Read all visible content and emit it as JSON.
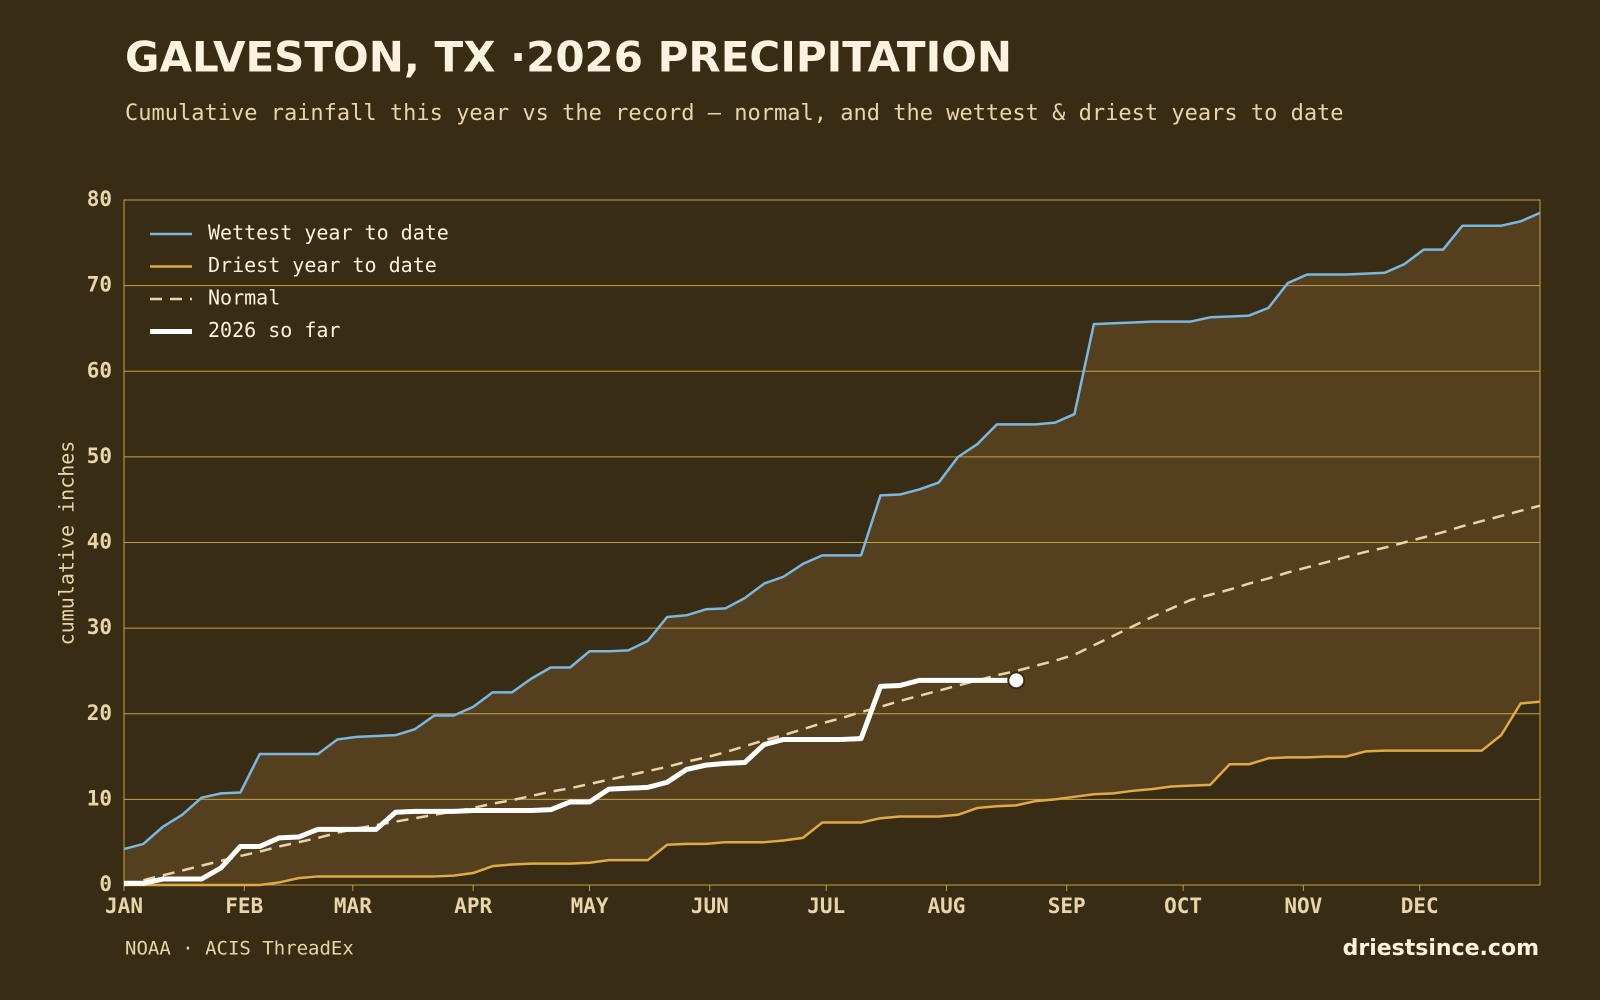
{
  "chart_data": {
    "type": "line",
    "title": "GALVESTON, TX ·2026 PRECIPITATION",
    "subtitle": "Cumulative rainfall this year vs the record — normal, and the wettest & driest years to date",
    "y_label": "cumulative inches",
    "source": "NOAA · ACIS ThreadEx",
    "brand": "driestsince.com",
    "x": [
      0,
      5,
      10,
      15,
      20,
      25,
      30,
      35,
      40,
      45,
      50,
      55,
      60,
      65,
      70,
      75,
      80,
      85,
      90,
      95,
      100,
      105,
      110,
      115,
      120,
      125,
      130,
      135,
      140,
      145,
      150,
      155,
      160,
      165,
      170,
      175,
      180,
      185,
      190,
      195,
      200,
      205,
      210,
      215,
      220,
      225,
      230,
      235,
      240,
      245,
      250,
      255,
      260,
      265,
      270,
      275,
      280,
      285,
      290,
      295,
      300,
      305,
      310,
      315,
      320,
      325,
      330,
      335,
      340,
      345,
      350,
      355,
      360,
      365
    ],
    "xlim": [
      0,
      365
    ],
    "xticks": [
      {
        "value": 0,
        "label": "JAN"
      },
      {
        "value": 31,
        "label": "FEB"
      },
      {
        "value": 59,
        "label": "MAR"
      },
      {
        "value": 90,
        "label": "APR"
      },
      {
        "value": 120,
        "label": "MAY"
      },
      {
        "value": 151,
        "label": "JUN"
      },
      {
        "value": 181,
        "label": "JUL"
      },
      {
        "value": 212,
        "label": "AUG"
      },
      {
        "value": 243,
        "label": "SEP"
      },
      {
        "value": 273,
        "label": "OCT"
      },
      {
        "value": 304,
        "label": "NOV"
      },
      {
        "value": 334,
        "label": "DEC"
      }
    ],
    "ylim": [
      0,
      80
    ],
    "yticks": [
      0,
      10,
      20,
      30,
      40,
      50,
      60,
      70,
      80
    ],
    "grid": true,
    "legend": "upper left",
    "band_color": "#543f1f",
    "series": [
      {
        "name": "Wettest year to date",
        "color": "#7ab8e0",
        "width": 2.5,
        "dashed": false,
        "values": [
          4.2,
          4.8,
          6.8,
          8.2,
          10.2,
          10.7,
          10.8,
          15.3,
          15.3,
          15.3,
          15.3,
          17,
          17.3,
          17.4,
          17.5,
          18.2,
          19.8,
          19.8,
          20.8,
          22.5,
          22.5,
          24.1,
          25.4,
          25.4,
          27.3,
          27.3,
          27.4,
          28.5,
          31.3,
          31.5,
          32.2,
          32.3,
          33.5,
          35.2,
          36,
          37.5,
          38.5,
          38.5,
          38.5,
          45.5,
          45.6,
          46.2,
          47,
          50,
          51.5,
          53.8,
          53.8,
          53.8,
          54,
          55,
          65.5,
          65.6,
          65.7,
          65.8,
          65.8,
          65.8,
          66.3,
          66.4,
          66.5,
          67.4,
          70.3,
          71.3,
          71.3,
          71.3,
          71.4,
          71.5,
          72.5,
          74.2,
          74.2,
          77,
          77,
          77,
          77.5,
          78.5
        ]
      },
      {
        "name": "Driest year to date",
        "color": "#e0aa45",
        "width": 2.5,
        "dashed": false,
        "values": [
          0,
          0,
          0,
          0,
          0,
          0,
          0,
          0,
          0.3,
          0.8,
          1,
          1,
          1,
          1,
          1,
          1,
          1,
          1.1,
          1.4,
          2.2,
          2.4,
          2.5,
          2.5,
          2.5,
          2.6,
          2.9,
          2.9,
          2.9,
          4.7,
          4.8,
          4.8,
          5,
          5,
          5,
          5.2,
          5.5,
          7.3,
          7.3,
          7.3,
          7.8,
          8,
          8,
          8,
          8.2,
          9,
          9.2,
          9.3,
          9.8,
          10,
          10.3,
          10.6,
          10.7,
          11,
          11.2,
          11.5,
          11.6,
          11.7,
          14.1,
          14.1,
          14.8,
          14.9,
          14.9,
          15,
          15,
          15.6,
          15.7,
          15.7,
          15.7,
          15.7,
          15.7,
          15.7,
          17.5,
          21.2,
          21.4
        ]
      },
      {
        "name": "Normal",
        "color": "#e8d5a8",
        "width": 2.5,
        "dashed": true,
        "values": [
          0,
          0.56,
          1.13,
          1.69,
          2.26,
          2.82,
          3.39,
          3.9,
          4.5,
          5,
          5.5,
          6.1,
          6.6,
          7,
          7.4,
          7.8,
          8.2,
          8.6,
          9,
          9.5,
          9.9,
          10.4,
          10.9,
          11.3,
          11.8,
          12.3,
          12.8,
          13.3,
          13.8,
          14.4,
          14.9,
          15.5,
          16.2,
          16.9,
          17.5,
          18.2,
          18.9,
          19.5,
          20.2,
          20.8,
          21.5,
          22.1,
          22.7,
          23.3,
          23.9,
          24.5,
          25,
          25.6,
          26.2,
          26.9,
          28,
          29.1,
          30.2,
          31.3,
          32.3,
          33.3,
          33.9,
          34.5,
          35.2,
          35.8,
          36.5,
          37.1,
          37.7,
          38.3,
          38.9,
          39.4,
          40,
          40.6,
          41.2,
          41.9,
          42.5,
          43.1,
          43.7,
          44.3
        ]
      },
      {
        "name": "2026 so far",
        "color": "#ffffff",
        "width": 5,
        "dashed": false,
        "end_marker": true,
        "values": [
          0.2,
          0.2,
          0.7,
          0.7,
          0.7,
          2,
          4.5,
          4.5,
          5.5,
          5.6,
          6.5,
          6.5,
          6.5,
          6.5,
          8.5,
          8.6,
          8.6,
          8.6,
          8.7,
          8.7,
          8.7,
          8.7,
          8.8,
          9.7,
          9.7,
          11.2,
          11.3,
          11.4,
          12,
          13.5,
          14,
          14.2,
          14.3,
          16.4,
          17,
          17,
          17,
          17,
          17.1,
          23.2,
          23.3,
          23.9,
          23.9,
          23.9,
          23.9,
          23.9,
          23.9,
          null,
          null,
          null,
          null,
          null,
          null,
          null,
          null,
          null,
          null,
          null,
          null,
          null,
          null,
          null,
          null,
          null,
          null,
          null,
          null,
          null,
          null,
          null,
          null,
          null,
          null,
          null
        ]
      }
    ]
  }
}
